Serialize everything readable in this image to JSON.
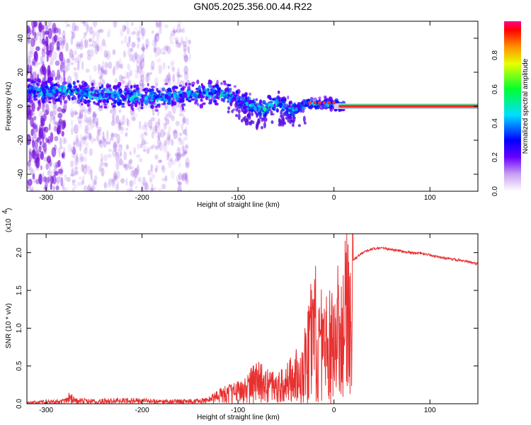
{
  "title": "GN05.2025.356.00.44.R22",
  "colors": {
    "snr_line": "#e83030",
    "axis": "#000000",
    "background": "#ffffff"
  },
  "chart_data": [
    {
      "type": "heatmap",
      "xlabel": "Height of straight line (km)",
      "ylabel": "Frequency (Hz)",
      "xlim": [
        -320,
        150
      ],
      "ylim": [
        -50,
        50
      ],
      "x_ticks": [
        -300,
        -200,
        -100,
        0,
        100
      ],
      "y_ticks": [
        -40,
        -20,
        0,
        20,
        40
      ],
      "colorbar": {
        "label": "Normalized spectral amplitude",
        "range": [
          0,
          1
        ],
        "ticks": [
          "0.0",
          "0.2",
          "0.4",
          "0.6",
          "0.8"
        ],
        "colormap": "rainbow"
      },
      "ridge_center": [
        {
          "x": -320,
          "y": 9
        },
        {
          "x": -280,
          "y": 9
        },
        {
          "x": -250,
          "y": 7
        },
        {
          "x": -220,
          "y": 6
        },
        {
          "x": -190,
          "y": 5
        },
        {
          "x": -160,
          "y": 6
        },
        {
          "x": -130,
          "y": 8
        },
        {
          "x": -110,
          "y": 7
        },
        {
          "x": -90,
          "y": 1
        },
        {
          "x": -75,
          "y": -2
        },
        {
          "x": -60,
          "y": 2
        },
        {
          "x": -45,
          "y": -3
        },
        {
          "x": -30,
          "y": 1
        },
        {
          "x": -15,
          "y": 2
        },
        {
          "x": 0,
          "y": 1
        },
        {
          "x": 10,
          "y": 0
        },
        {
          "x": 150,
          "y": 0
        }
      ]
    },
    {
      "type": "line",
      "xlabel": "Height of straight line (km)",
      "ylabel": "SNR (10 * v/v)",
      "y_multiplier": "(x10",
      "y_multiplier_exp": "4",
      "xlim": [
        -320,
        150
      ],
      "ylim": [
        0,
        2.25
      ],
      "x_ticks": [
        -300,
        -200,
        -100,
        0,
        100
      ],
      "y_ticks": [
        "0.0",
        "0.5",
        "1.0",
        "1.5",
        "2.0"
      ],
      "series": [
        {
          "x": [
            -320,
            -300,
            -280,
            -275,
            -270,
            -250,
            -220,
            -200,
            -180,
            -160,
            -140,
            -130,
            -120,
            -110,
            -100,
            -90,
            -80,
            -70,
            -60,
            -50,
            -40,
            -35,
            -30,
            -25,
            -20,
            -15,
            -10,
            -5,
            0,
            5,
            10,
            15,
            20,
            30,
            40,
            50,
            60,
            70,
            80,
            90,
            100,
            110,
            120,
            130,
            140,
            150
          ],
          "y": [
            0.02,
            0.04,
            0.05,
            0.13,
            0.06,
            0.05,
            0.06,
            0.06,
            0.04,
            0.05,
            0.05,
            0.08,
            0.15,
            0.2,
            0.25,
            0.32,
            0.45,
            0.38,
            0.3,
            0.4,
            0.55,
            0.5,
            0.75,
            1.15,
            1.35,
            1.1,
            1.05,
            1.2,
            1.0,
            1.4,
            1.55,
            1.75,
            1.9,
            2.0,
            2.05,
            2.06,
            2.04,
            2.02,
            2.0,
            1.99,
            1.97,
            1.94,
            1.92,
            1.9,
            1.88,
            1.85
          ]
        }
      ]
    }
  ]
}
